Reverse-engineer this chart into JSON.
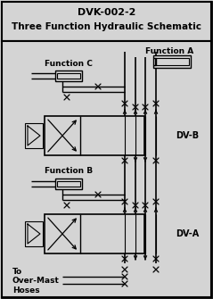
{
  "title_line1": "DVK-002-2",
  "title_line2": "Three Function Hydraulic Schematic",
  "bg_color": "#d4d4d4",
  "label_func_a": "Function A",
  "label_func_b": "Function B",
  "label_func_c": "Function C",
  "label_dv_a": "DV-A",
  "label_dv_b": "DV-B",
  "label_bottom": "To\nOver-Mast\nHoses",
  "fig_w": 2.39,
  "fig_h": 3.35,
  "dpi": 100
}
